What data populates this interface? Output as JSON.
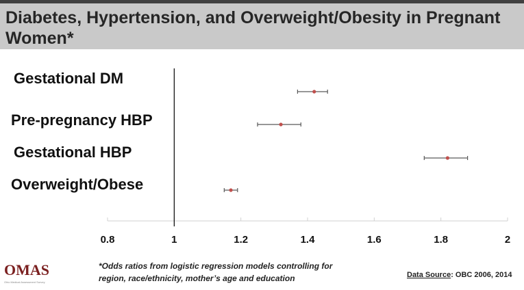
{
  "chart_data": {
    "type": "errorbar",
    "title": "Diabetes, Hypertension, and Overweight/Obesity in Pregnant Women*",
    "categories": [
      "Gestational DM",
      "Pre-pregnancy HBP",
      "Gestational HBP",
      "Overweight/Obese"
    ],
    "values": [
      1.42,
      1.32,
      1.82,
      1.17
    ],
    "ci_low": [
      1.37,
      1.25,
      1.75,
      1.15
    ],
    "ci_high": [
      1.46,
      1.38,
      1.88,
      1.19
    ],
    "color": "#c0504d",
    "errorbar_color": "#595959",
    "reference_line": 1,
    "xlim": [
      0.8,
      2
    ],
    "xticks": [
      0.8,
      1,
      1.2,
      1.4,
      1.6,
      1.8,
      2
    ],
    "footnote": [
      "*Odds ratios from logistic regression models controlling for",
      "region, race/ethnicity, mother’s  age and education"
    ],
    "source_label": "Data Source",
    "source_text": ": OBC 2006, 2014",
    "logo": "OMAS",
    "logo_subtitle": "Ohio Medical Assessment Survey"
  }
}
